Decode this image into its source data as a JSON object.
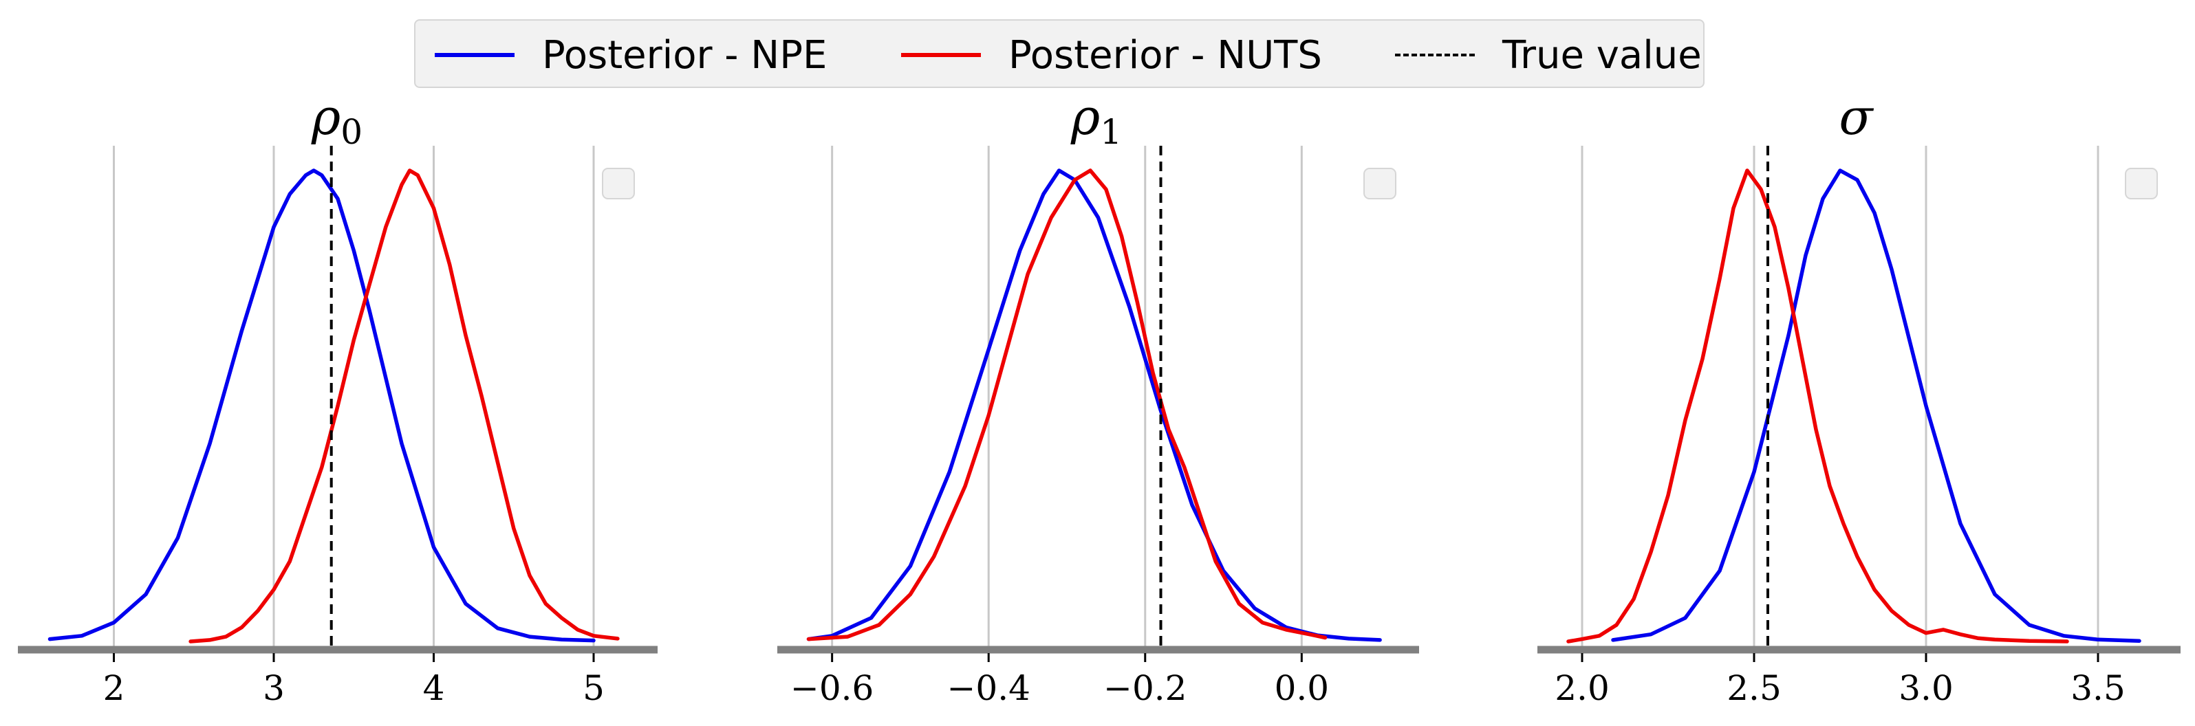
{
  "chart_data": {
    "type": "line",
    "legend": {
      "placement": "top-center",
      "entries": [
        {
          "label": "Posterior - NPE",
          "color": "#0000ee",
          "style": "solid"
        },
        {
          "label": "Posterior - NUTS",
          "color": "#ee0000",
          "style": "solid"
        },
        {
          "label": "True value",
          "color": "#000000",
          "style": "dashed"
        }
      ]
    },
    "grid": "vertical",
    "panels": [
      {
        "title": "ρ",
        "title_subscript": "0",
        "xlim": [
          1.4,
          5.4
        ],
        "xticks": [
          2,
          3,
          4,
          5
        ],
        "xtick_labels": [
          "2",
          "3",
          "4",
          "5"
        ],
        "true_value": 3.36,
        "series": [
          {
            "name": "Posterior - NPE",
            "color": "#0000ee",
            "x": [
              1.6,
              1.8,
              2.0,
              2.2,
              2.4,
              2.6,
              2.8,
              3.0,
              3.1,
              3.2,
              3.25,
              3.3,
              3.4,
              3.5,
              3.6,
              3.8,
              4.0,
              4.2,
              4.4,
              4.6,
              4.8,
              5.0
            ],
            "y": [
              0.005,
              0.012,
              0.04,
              0.1,
              0.22,
              0.42,
              0.66,
              0.88,
              0.95,
              0.99,
              1.0,
              0.99,
              0.94,
              0.83,
              0.7,
              0.42,
              0.2,
              0.08,
              0.028,
              0.01,
              0.004,
              0.002
            ]
          },
          {
            "name": "Posterior - NUTS",
            "color": "#ee0000",
            "x": [
              2.48,
              2.6,
              2.7,
              2.8,
              2.9,
              3.0,
              3.1,
              3.2,
              3.3,
              3.4,
              3.5,
              3.6,
              3.7,
              3.8,
              3.85,
              3.9,
              4.0,
              4.1,
              4.2,
              4.3,
              4.4,
              4.5,
              4.6,
              4.7,
              4.8,
              4.9,
              5.0,
              5.15
            ],
            "y": [
              0.0,
              0.003,
              0.01,
              0.03,
              0.065,
              0.11,
              0.17,
              0.27,
              0.37,
              0.5,
              0.64,
              0.76,
              0.88,
              0.97,
              1.0,
              0.99,
              0.92,
              0.8,
              0.65,
              0.52,
              0.38,
              0.24,
              0.14,
              0.08,
              0.05,
              0.025,
              0.012,
              0.006
            ]
          }
        ]
      },
      {
        "title": "ρ",
        "title_subscript": "1",
        "xlim": [
          -0.67,
          0.15
        ],
        "xticks": [
          -0.6,
          -0.4,
          -0.2,
          0.0
        ],
        "xtick_labels": [
          "−0.6",
          "−0.4",
          "−0.2",
          "0.0"
        ],
        "true_value": -0.18,
        "series": [
          {
            "name": "Posterior - NPE",
            "color": "#0000ee",
            "x": [
              -0.63,
              -0.6,
              -0.55,
              -0.5,
              -0.45,
              -0.4,
              -0.36,
              -0.33,
              -0.31,
              -0.29,
              -0.26,
              -0.22,
              -0.18,
              -0.14,
              -0.1,
              -0.06,
              -0.02,
              0.02,
              0.06,
              0.1
            ],
            "y": [
              0.005,
              0.012,
              0.05,
              0.16,
              0.36,
              0.62,
              0.83,
              0.95,
              1.0,
              0.98,
              0.9,
              0.71,
              0.49,
              0.29,
              0.15,
              0.07,
              0.03,
              0.013,
              0.006,
              0.003
            ]
          },
          {
            "name": "Posterior - NUTS",
            "color": "#ee0000",
            "x": [
              -0.63,
              -0.58,
              -0.54,
              -0.5,
              -0.47,
              -0.43,
              -0.4,
              -0.37,
              -0.35,
              -0.32,
              -0.29,
              -0.27,
              -0.25,
              -0.23,
              -0.21,
              -0.19,
              -0.17,
              -0.15,
              -0.13,
              -0.11,
              -0.08,
              -0.05,
              -0.02,
              0.01,
              0.03
            ],
            "y": [
              0.005,
              0.01,
              0.035,
              0.1,
              0.18,
              0.33,
              0.48,
              0.66,
              0.78,
              0.9,
              0.98,
              1.0,
              0.96,
              0.86,
              0.72,
              0.57,
              0.45,
              0.37,
              0.27,
              0.17,
              0.08,
              0.04,
              0.025,
              0.015,
              0.008
            ]
          }
        ]
      },
      {
        "title": "σ",
        "title_subscript": "",
        "xlim": [
          1.87,
          3.74
        ],
        "xticks": [
          2.0,
          2.5,
          3.0,
          3.5
        ],
        "xtick_labels": [
          "2.0",
          "2.5",
          "3.0",
          "3.5"
        ],
        "true_value": 2.54,
        "series": [
          {
            "name": "Posterior - NPE",
            "color": "#0000ee",
            "x": [
              2.09,
              2.2,
              2.3,
              2.4,
              2.5,
              2.6,
              2.65,
              2.7,
              2.75,
              2.8,
              2.85,
              2.9,
              3.0,
              3.1,
              3.2,
              3.3,
              3.4,
              3.5,
              3.62
            ],
            "y": [
              0.003,
              0.015,
              0.05,
              0.15,
              0.36,
              0.65,
              0.82,
              0.94,
              1.0,
              0.98,
              0.91,
              0.79,
              0.5,
              0.25,
              0.1,
              0.035,
              0.012,
              0.004,
              0.001
            ]
          },
          {
            "name": "Posterior - NUTS",
            "color": "#ee0000",
            "x": [
              1.96,
              2.0,
              2.05,
              2.1,
              2.15,
              2.2,
              2.25,
              2.3,
              2.35,
              2.4,
              2.44,
              2.48,
              2.52,
              2.56,
              2.6,
              2.64,
              2.68,
              2.72,
              2.76,
              2.8,
              2.85,
              2.9,
              2.95,
              3.0,
              3.05,
              3.1,
              3.15,
              3.2,
              3.3,
              3.41
            ],
            "y": [
              0.0,
              0.005,
              0.012,
              0.035,
              0.09,
              0.19,
              0.31,
              0.47,
              0.6,
              0.77,
              0.92,
              1.0,
              0.96,
              0.88,
              0.75,
              0.6,
              0.45,
              0.33,
              0.25,
              0.18,
              0.11,
              0.065,
              0.035,
              0.018,
              0.025,
              0.015,
              0.007,
              0.004,
              0.001,
              0.0
            ]
          }
        ]
      }
    ]
  }
}
